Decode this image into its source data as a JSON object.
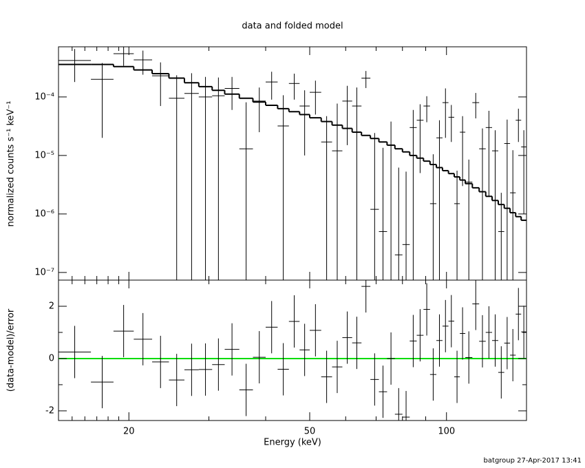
{
  "chart_data": [
    {
      "type": "errorbar_step",
      "title": "data and folded model",
      "ylabel": "normalized counts s⁻¹ keV⁻¹",
      "xscale": "log",
      "yscale": "log",
      "xlim": [
        14,
        150
      ],
      "ylim": [
        7.4e-08,
        0.00072
      ],
      "xticks": [
        20,
        50,
        100
      ],
      "xminor_ticks": [
        15,
        16,
        17,
        18,
        19,
        30,
        40,
        60,
        70,
        80,
        90
      ],
      "yticks": [
        {
          "value": 1e-07,
          "label": "10⁻⁷"
        },
        {
          "value": 1e-06,
          "label": "10⁻⁶"
        },
        {
          "value": 1e-05,
          "label": "10⁻⁵"
        },
        {
          "value": 0.0001,
          "label": "10⁻⁴"
        }
      ],
      "color": "#000000",
      "model_color": "#000000",
      "bin_edges": [
        14,
        16.5,
        18.5,
        20.5,
        22.5,
        24.5,
        26.5,
        28.5,
        30.5,
        32.5,
        35,
        37.5,
        40,
        42.5,
        45,
        47.5,
        50,
        53,
        56,
        59,
        62,
        65,
        68,
        71,
        74,
        77,
        80,
        83,
        86,
        89,
        92,
        95,
        98,
        101,
        104,
        107,
        110,
        114,
        118,
        122,
        126,
        130,
        134,
        138,
        142,
        146,
        150
      ],
      "values": [
        0.00042,
        0.0002,
        0.00055,
        0.00043,
        0.00023,
        9.5e-05,
        0.000115,
        0.0001,
        0.000105,
        0.00014,
        1.3e-05,
        8.5e-05,
        0.00018,
        3.2e-05,
        0.00017,
        7e-05,
        0.00012,
        1.7e-05,
        1.2e-05,
        8.5e-05,
        7e-05,
        0.00021,
        1.2e-06,
        5e-07,
        1.5e-05,
        2e-07,
        3e-07,
        3e-05,
        4e-05,
        7e-05,
        1.5e-06,
        2e-05,
        8e-05,
        4.5e-05,
        1.5e-06,
        2.5e-05,
        3.5e-06,
        8e-05,
        1.3e-05,
        3e-05,
        1.2e-05,
        5e-07,
        1.6e-05,
        2.3e-06,
        4e-05,
        1.4e-05
      ],
      "errors": [
        0.00024,
        0.00018,
        0.00021,
        0.00019,
        0.00016,
        0.00014,
        0.00014,
        0.00012,
        0.00011,
        8e-05,
        6.8e-05,
        6e-05,
        9e-05,
        7.5e-05,
        8e-05,
        6e-05,
        7e-05,
        3e-05,
        6.5e-05,
        7e-05,
        7.5e-05,
        6.8e-05,
        2.3e-05,
        1.3e-05,
        2.3e-05,
        6e-06,
        5e-06,
        3e-05,
        3.5e-05,
        3.3e-05,
        9e-06,
        2e-05,
        6e-05,
        2.8e-05,
        4e-06,
        2.2e-05,
        5e-06,
        3.7e-05,
        1.6e-05,
        2.8e-05,
        1.5e-05,
        1.8e-06,
        2.5e-05,
        1e-05,
        2.3e-05,
        1.3e-05
      ],
      "model": [
        0.00036,
        0.00036,
        0.00033,
        0.00029,
        0.00025,
        0.00021,
        0.000175,
        0.00015,
        0.00013,
        0.000112,
        9.5e-05,
        8.2e-05,
        7.2e-05,
        6.3e-05,
        5.6e-05,
        5e-05,
        4.4e-05,
        3.8e-05,
        3.3e-05,
        2.9e-05,
        2.5e-05,
        2.2e-05,
        1.95e-05,
        1.7e-05,
        1.5e-05,
        1.3e-05,
        1.15e-05,
        1e-05,
        9e-06,
        8e-06,
        7e-06,
        6.2e-06,
        5.5e-06,
        4.9e-06,
        4.3e-06,
        3.8e-06,
        3.3e-06,
        2.8e-06,
        2.4e-06,
        2e-06,
        1.7e-06,
        1.45e-06,
        1.25e-06,
        1.05e-06,
        9e-07,
        7.8e-07
      ]
    },
    {
      "type": "residual",
      "xlabel": "Energy (keV)",
      "ylabel": "(data-model)/error",
      "xscale": "log",
      "xlim": [
        14,
        150
      ],
      "ylim": [
        -2.37,
        3
      ],
      "xticks": [
        20,
        50,
        100
      ],
      "xminor_ticks": [
        15,
        16,
        17,
        18,
        19,
        30,
        40,
        60,
        70,
        80,
        90
      ],
      "yticks": [
        -2,
        0,
        2
      ],
      "yminor_ticks": [
        -1,
        1
      ],
      "color": "#000000",
      "reference_line": 0,
      "reference_color": "#00dd00",
      "bin_edges": [
        14,
        16.5,
        18.5,
        20.5,
        22.5,
        24.5,
        26.5,
        28.5,
        30.5,
        32.5,
        35,
        37.5,
        40,
        42.5,
        45,
        47.5,
        50,
        53,
        56,
        59,
        62,
        65,
        68,
        71,
        74,
        77,
        80,
        83,
        86,
        89,
        92,
        95,
        98,
        101,
        104,
        107,
        110,
        114,
        118,
        122,
        126,
        130,
        134,
        138,
        142,
        146,
        150
      ],
      "values": [
        0.25,
        -0.9,
        1.05,
        0.74,
        -0.13,
        -0.82,
        -0.43,
        -0.42,
        -0.23,
        0.35,
        -1.2,
        0.05,
        1.2,
        -0.41,
        1.42,
        0.33,
        1.08,
        -0.7,
        -0.32,
        0.8,
        0.6,
        2.76,
        -0.8,
        -1.27,
        0,
        -2.13,
        -2.24,
        0.67,
        0.89,
        1.88,
        -0.61,
        0.69,
        1.24,
        1.43,
        -0.7,
        0.96,
        0.04,
        2.09,
        0.66,
        1.0,
        0.69,
        -0.53,
        0.59,
        0.13,
        1.7,
        1.02
      ],
      "error": 1
    }
  ],
  "footer": "batgroup 27-Apr-2017 13:41"
}
